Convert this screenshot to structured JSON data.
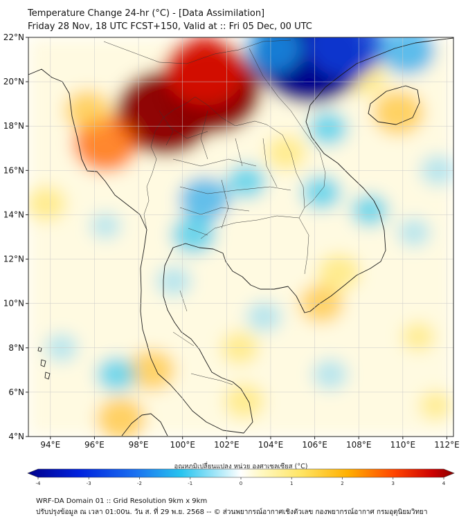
{
  "header": {
    "title_line1": "Temperature Change 24-hr (°C) - [Data Assimilation]",
    "title_line2": "Friday 28 Nov, 18 UTC FCST+150, Valid at :: Fri 05 Dec, 00 UTC"
  },
  "map": {
    "lat_labels": [
      "22°N",
      "20°N",
      "18°N",
      "16°N",
      "14°N",
      "12°N",
      "10°N",
      "8°N",
      "6°N",
      "4°N"
    ],
    "lon_labels": [
      "94°E",
      "96°E",
      "98°E",
      "100°E",
      "102°E",
      "104°E",
      "106°E",
      "108°E",
      "110°E",
      "112°E"
    ],
    "lat_range": [
      4,
      22
    ],
    "lon_range": [
      93,
      112.3
    ],
    "anomalies": [
      {
        "lon": 101.3,
        "lat": 19.6,
        "value": 3.5
      },
      {
        "lon": 99.2,
        "lat": 18.6,
        "value": 3.4
      },
      {
        "lon": 101.0,
        "lat": 20.5,
        "value": 2.6
      },
      {
        "lon": 96.5,
        "lat": 17.2,
        "value": 1.9
      },
      {
        "lon": 95.7,
        "lat": 18.7,
        "value": 1.1
      },
      {
        "lon": 109.8,
        "lat": 18.6,
        "value": 1.3
      },
      {
        "lon": 108.3,
        "lat": 20.2,
        "value": 0.9
      },
      {
        "lon": 106.3,
        "lat": 10.0,
        "value": 1.0
      },
      {
        "lon": 107.1,
        "lat": 11.4,
        "value": 0.9
      },
      {
        "lon": 98.6,
        "lat": 7.0,
        "value": 1.1
      },
      {
        "lon": 97.2,
        "lat": 4.8,
        "value": 1.2
      },
      {
        "lon": 93.8,
        "lat": 14.5,
        "value": 0.8
      },
      {
        "lon": 104.7,
        "lat": 16.8,
        "value": 0.8
      },
      {
        "lon": 102.6,
        "lat": 8.0,
        "value": 0.7
      },
      {
        "lon": 102.8,
        "lat": 5.6,
        "value": 0.8
      },
      {
        "lon": 110.7,
        "lat": 8.5,
        "value": 0.5
      },
      {
        "lon": 111.5,
        "lat": 5.4,
        "value": 0.5
      },
      {
        "lon": 105.8,
        "lat": 21.2,
        "value": -4.0
      },
      {
        "lon": 107.4,
        "lat": 21.7,
        "value": -2.5
      },
      {
        "lon": 104.1,
        "lat": 21.5,
        "value": -1.6
      },
      {
        "lon": 110.2,
        "lat": 21.4,
        "value": -1.5
      },
      {
        "lon": 101.0,
        "lat": 14.7,
        "value": -1.3
      },
      {
        "lon": 100.5,
        "lat": 13.1,
        "value": -1.0
      },
      {
        "lon": 102.9,
        "lat": 15.5,
        "value": -0.8
      },
      {
        "lon": 106.3,
        "lat": 15.0,
        "value": -0.8
      },
      {
        "lon": 106.6,
        "lat": 17.9,
        "value": -0.8
      },
      {
        "lon": 99.6,
        "lat": 11.0,
        "value": -0.6
      },
      {
        "lon": 97.0,
        "lat": 6.8,
        "value": -0.8
      },
      {
        "lon": 94.5,
        "lat": 8.0,
        "value": -0.5
      },
      {
        "lon": 108.5,
        "lat": 14.2,
        "value": -0.7
      },
      {
        "lon": 110.5,
        "lat": 13.2,
        "value": -0.5
      },
      {
        "lon": 106.7,
        "lat": 6.8,
        "value": -0.6
      },
      {
        "lon": 103.7,
        "lat": 9.4,
        "value": -0.6
      },
      {
        "lon": 96.5,
        "lat": 13.5,
        "value": -0.4
      },
      {
        "lon": 111.6,
        "lat": 16.0,
        "value": -0.6
      }
    ]
  },
  "legend": {
    "label": "อุณหภูมิเปลี่ยนแปลง หน่วย องศาเซลเซียส (°C)",
    "ticks": [
      "-4",
      "-3",
      "-2",
      "-1",
      "0",
      "1",
      "2",
      "3",
      "4"
    ],
    "range": [
      -4,
      4
    ]
  },
  "footer": {
    "line1": "WRF-DA Domain 01 :: Grid Resolution 9km x 9km",
    "line2": "ปรับปรุงข้อมูล ณ เวลา 01:00น. วัน ส. ที่ 29 พ.ย. 2568 -- © ส่วนพยากรณ์อากาศเชิงตัวเลข กองพยากรณ์อากาศ กรมอุตุนิยมวิทยา"
  },
  "colors": {
    "cold_extreme": "#00008b",
    "cold": "#27c4ef",
    "neutral": "#ffffff",
    "warm": "#ffe565",
    "hot": "#ff6600",
    "hot_extreme": "#8b0000"
  }
}
